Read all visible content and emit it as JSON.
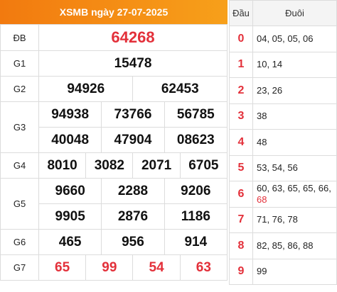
{
  "header": {
    "title": "XSMB ngày 27-07-2025"
  },
  "prizes": {
    "db": {
      "label": "ĐB",
      "numbers": [
        "64268"
      ]
    },
    "g1": {
      "label": "G1",
      "numbers": [
        "15478"
      ]
    },
    "g2": {
      "label": "G2",
      "numbers": [
        "94926",
        "62453"
      ]
    },
    "g3": {
      "label": "G3",
      "numbers": [
        "94938",
        "73766",
        "56785",
        "40048",
        "47904",
        "08623"
      ]
    },
    "g4": {
      "label": "G4",
      "numbers": [
        "8010",
        "3082",
        "2071",
        "6705"
      ]
    },
    "g5": {
      "label": "G5",
      "numbers": [
        "9660",
        "2288",
        "9206",
        "9905",
        "2876",
        "1186"
      ]
    },
    "g6": {
      "label": "G6",
      "numbers": [
        "465",
        "956",
        "914"
      ]
    },
    "g7": {
      "label": "G7",
      "numbers": [
        "65",
        "99",
        "54",
        "63"
      ]
    }
  },
  "loto": {
    "col_head": "Đầu",
    "col_tail": "Đuôi",
    "rows": [
      {
        "head": "0",
        "tail": "04, 05, 05, 06"
      },
      {
        "head": "1",
        "tail": "10, 14"
      },
      {
        "head": "2",
        "tail": "23, 26"
      },
      {
        "head": "3",
        "tail": "38"
      },
      {
        "head": "4",
        "tail": "48"
      },
      {
        "head": "5",
        "tail": "53, 54, 56"
      },
      {
        "head": "6",
        "tail": "60, 63, 65, 65, 66,",
        "tail_extra": "68"
      },
      {
        "head": "7",
        "tail": "71, 76, 78"
      },
      {
        "head": "8",
        "tail": "82, 85, 86, 88"
      },
      {
        "head": "9",
        "tail": "99"
      }
    ]
  },
  "colors": {
    "accent": "#f27a0f",
    "red": "#e3303a",
    "border": "#dcdcdc"
  }
}
